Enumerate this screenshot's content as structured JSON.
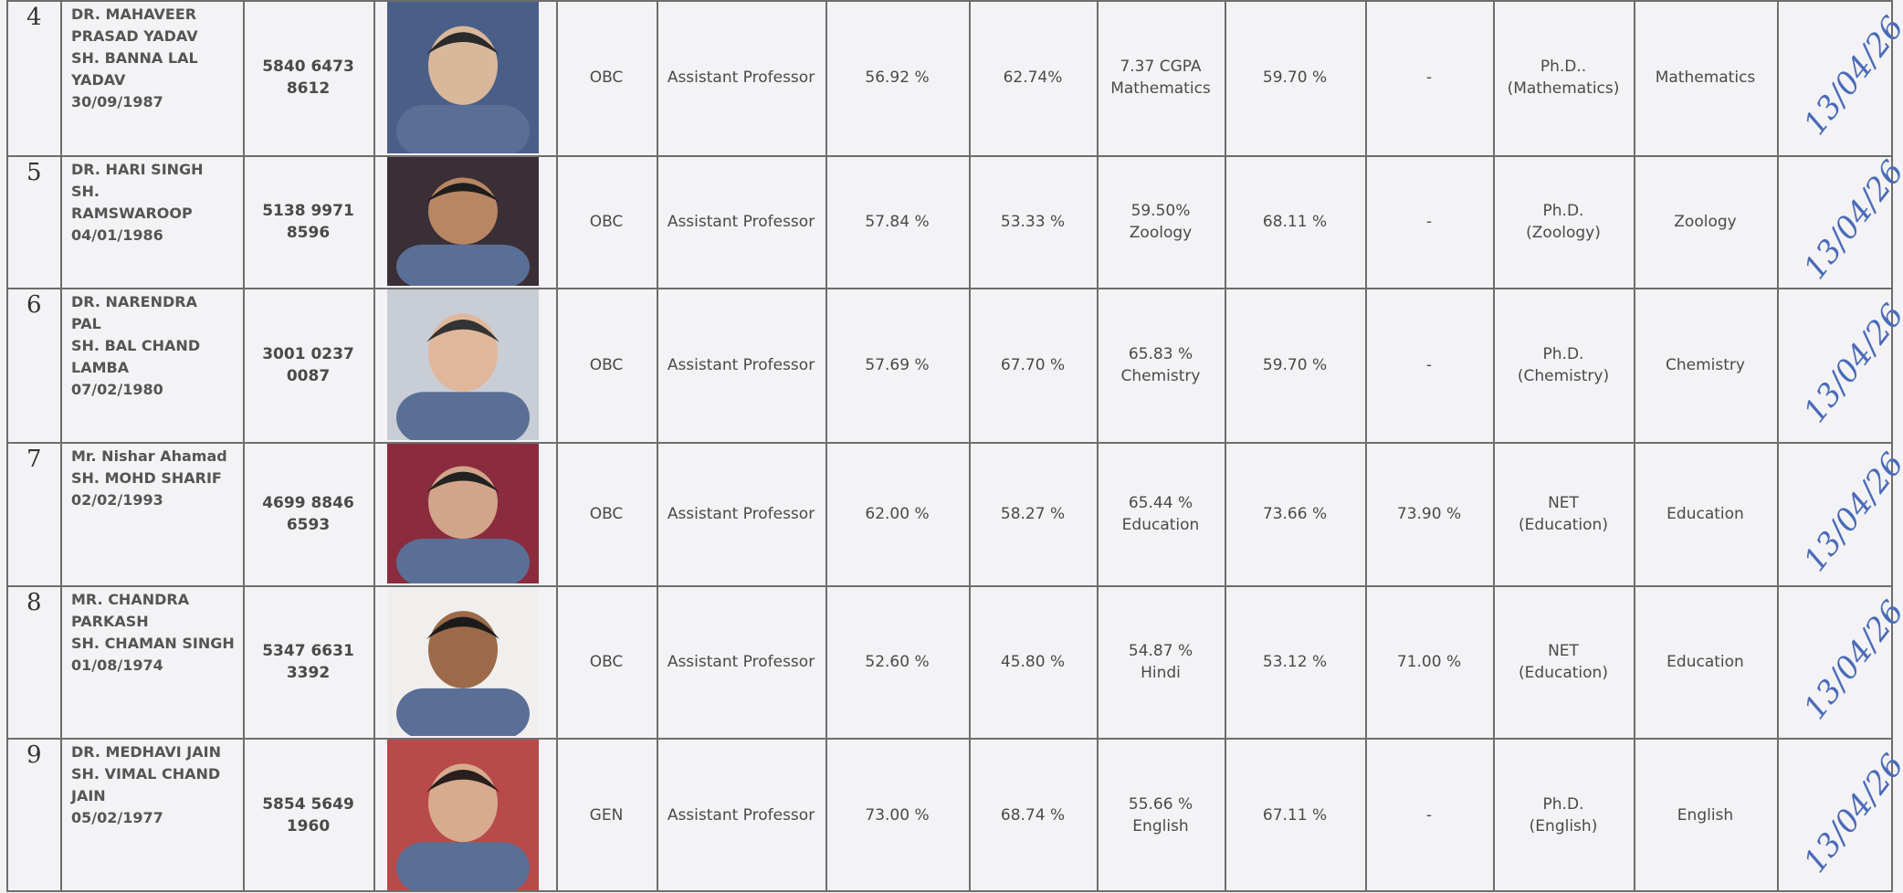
{
  "table": {
    "rows": [
      {
        "sno": "4",
        "name": [
          "DR. MAHAVEER",
          "PRASAD YADAV",
          "SH. BANNA LAL",
          "YADAV",
          "30/09/1987"
        ],
        "aadhaar": [
          "5840 6473",
          "8612"
        ],
        "category": "OBC",
        "post": "Assistant Professor",
        "p1": "56.92 %",
        "p2": "62.74%",
        "p3": [
          "7.37 CGPA",
          "Mathematics"
        ],
        "p4": "59.70 %",
        "p5": "-",
        "qualification": [
          "Ph.D..",
          "(Mathematics)"
        ],
        "subject": "Mathematics",
        "date": "13/04/26"
      },
      {
        "sno": "5",
        "name": [
          "DR. HARI SINGH",
          "SH.",
          "RAMSWAROOP",
          "04/01/1986"
        ],
        "aadhaar": [
          "5138 9971",
          "8596"
        ],
        "category": "OBC",
        "post": "Assistant Professor",
        "p1": "57.84 %",
        "p2": "53.33 %",
        "p3": [
          "59.50%",
          "Zoology"
        ],
        "p4": "68.11 %",
        "p5": "-",
        "qualification": [
          "Ph.D.",
          "(Zoology)"
        ],
        "subject": "Zoology",
        "date": "13/04/26"
      },
      {
        "sno": "6",
        "name": [
          "DR. NARENDRA",
          "PAL",
          "SH. BAL CHAND",
          "LAMBA",
          "07/02/1980"
        ],
        "aadhaar": [
          "3001 0237",
          "0087"
        ],
        "category": "OBC",
        "post": "Assistant Professor",
        "p1": "57.69 %",
        "p2": "67.70 %",
        "p3": [
          "65.83 %",
          "Chemistry"
        ],
        "p4": "59.70 %",
        "p5": "-",
        "qualification": [
          "Ph.D.",
          "(Chemistry)"
        ],
        "subject": "Chemistry",
        "date": "13/04/26"
      },
      {
        "sno": "7",
        "name": [
          "Mr. Nishar Ahamad",
          "SH. MOHD SHARIF",
          "02/02/1993"
        ],
        "aadhaar": [
          "4699 8846",
          "6593"
        ],
        "category": "OBC",
        "post": "Assistant Professor",
        "p1": "62.00 %",
        "p2": "58.27 %",
        "p3": [
          "65.44 %",
          "Education"
        ],
        "p4": "73.66 %",
        "p5": "73.90 %",
        "qualification": [
          "NET",
          "(Education)"
        ],
        "subject": "Education",
        "date": "13/04/26"
      },
      {
        "sno": "8",
        "name": [
          "MR. CHANDRA",
          "PARKASH",
          "SH. CHAMAN SINGH",
          "01/08/1974"
        ],
        "aadhaar": [
          "5347 6631",
          "3392"
        ],
        "category": "OBC",
        "post": "Assistant Professor",
        "p1": "52.60 %",
        "p2": "45.80 %",
        "p3": [
          "54.87 %",
          "Hindi"
        ],
        "p4": "53.12 %",
        "p5": "71.00 %",
        "qualification": [
          "NET",
          "(Education)"
        ],
        "subject": "Education",
        "date": "13/04/26"
      },
      {
        "sno": "9",
        "name": [
          "DR. MEDHAVI JAIN",
          "SH. VIMAL CHAND",
          "JAIN",
          "05/02/1977"
        ],
        "aadhaar": [
          "5854 5649",
          "1960"
        ],
        "category": "GEN",
        "post": "Assistant Professor",
        "p1": "73.00 %",
        "p2": "68.74 %",
        "p3": [
          "55.66 %",
          "English"
        ],
        "p4": "67.11 %",
        "p5": "-",
        "qualification": [
          "Ph.D.",
          "(English)"
        ],
        "subject": "English",
        "date": "13/04/26"
      }
    ]
  }
}
